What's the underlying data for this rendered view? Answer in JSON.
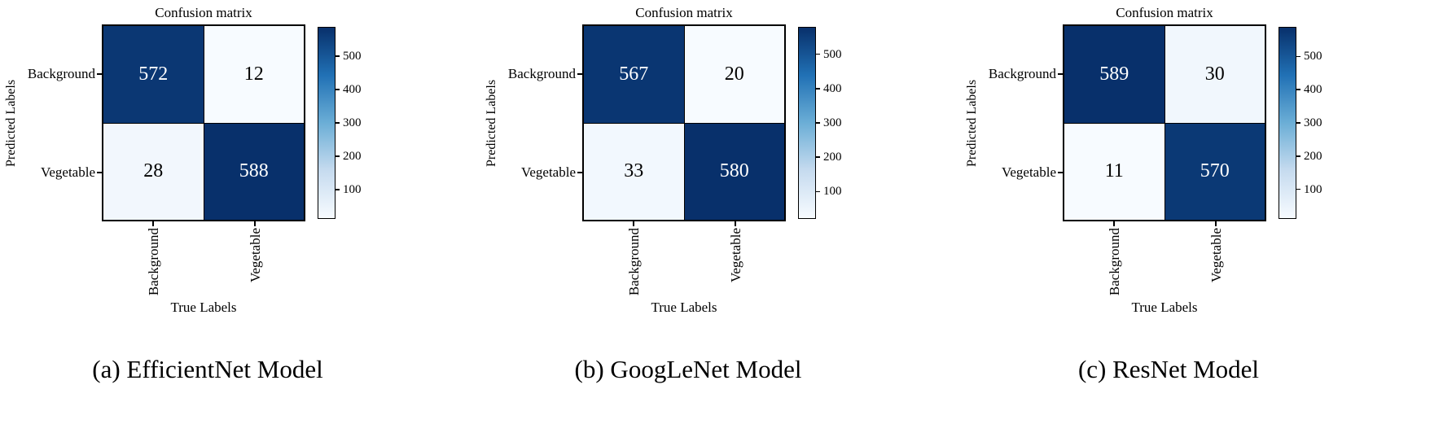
{
  "figure": {
    "background": "#ffffff",
    "border_color": "#000000",
    "cmap_name": "Blues",
    "cmap_stops": [
      [
        0,
        "#f7fbff"
      ],
      [
        0.25,
        "#c6dbef"
      ],
      [
        0.5,
        "#6baed6"
      ],
      [
        0.75,
        "#2171b5"
      ],
      [
        1,
        "#08306b"
      ]
    ],
    "cell_text_on_dark": "#ffffff",
    "cell_text_on_light": "#000000"
  },
  "chart_data": [
    {
      "type": "heatmap",
      "title": "Confusion matrix",
      "xlabel": "True Labels",
      "ylabel": "Predicted Labels",
      "row_labels": [
        "Background",
        "Vegetable"
      ],
      "col_labels": [
        "Background",
        "Vegetable"
      ],
      "matrix": [
        [
          572,
          12
        ],
        [
          28,
          588
        ]
      ],
      "vmin": 12,
      "vmax": 588,
      "colorbar_ticks": [
        100,
        200,
        300,
        400,
        500
      ],
      "legend": "colorbar-right",
      "caption": "(a) EfficientNet Model"
    },
    {
      "type": "heatmap",
      "title": "Confusion matrix",
      "xlabel": "True Labels",
      "ylabel": "Predicted Labels",
      "row_labels": [
        "Background",
        "Vegetable"
      ],
      "col_labels": [
        "Background",
        "Vegetable"
      ],
      "matrix": [
        [
          567,
          20
        ],
        [
          33,
          580
        ]
      ],
      "vmin": 20,
      "vmax": 580,
      "colorbar_ticks": [
        100,
        200,
        300,
        400,
        500
      ],
      "legend": "colorbar-right",
      "caption": "(b) GoogLeNet Model"
    },
    {
      "type": "heatmap",
      "title": "Confusion matrix",
      "xlabel": "True Labels",
      "ylabel": "Predicted Labels",
      "row_labels": [
        "Background",
        "Vegetable"
      ],
      "col_labels": [
        "Background",
        "Vegetable"
      ],
      "matrix": [
        [
          589,
          30
        ],
        [
          11,
          570
        ]
      ],
      "vmin": 11,
      "vmax": 589,
      "colorbar_ticks": [
        100,
        200,
        300,
        400,
        500
      ],
      "legend": "colorbar-right",
      "caption": "(c) ResNet Model"
    }
  ]
}
